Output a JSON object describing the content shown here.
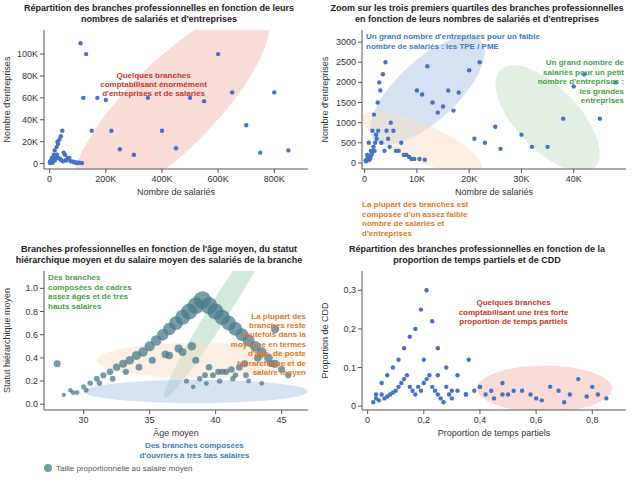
{
  "chart_data": [
    {
      "type": "scatter",
      "title": "Répartition des branches professionnelles en fonction de leurs\nnombres de salariés et d'entreprises",
      "x_label": "Nombre de salariés",
      "y_label": "Nombre d'entreprises",
      "grid": false,
      "series": [
        {
          "color": "#4472c4",
          "x": [
            1000,
            2000,
            3000,
            4000,
            5000,
            6000,
            7000,
            8000,
            9000,
            10000,
            11000,
            12000,
            13000,
            15000,
            16000,
            18000,
            19000,
            20000,
            22000,
            23000,
            25000,
            26000,
            28000,
            30000,
            32000,
            35000,
            38000,
            40000,
            42000,
            45000,
            48000,
            50000,
            55000,
            58000,
            60000,
            65000,
            70000,
            75000,
            80000,
            85000,
            90000,
            95000,
            100000,
            105000,
            110000,
            115000,
            120000,
            130000,
            150000,
            170000,
            200000,
            220000,
            250000,
            300000,
            350000,
            400000,
            450000,
            500000,
            550000,
            600000,
            650000,
            700000,
            750000,
            800000,
            850000
          ],
          "values": [
            1000,
            2000,
            500,
            1500,
            2000,
            3000,
            2000,
            5000,
            800,
            1000,
            1200,
            3000,
            2000,
            8000,
            4000,
            12000,
            3000,
            5000,
            7000,
            6000,
            15000,
            8000,
            20000,
            18000,
            5000,
            22000,
            4000,
            25000,
            3000,
            30000,
            2000,
            10000,
            8000,
            3000,
            3000,
            5000,
            5000,
            2000,
            2000,
            1500,
            1000,
            1000,
            500,
            800,
            110000,
            400,
            60000,
            100000,
            30000,
            60000,
            58000,
            30000,
            13000,
            8000,
            60000,
            30000,
            14000,
            60000,
            57000,
            100000,
            65000,
            35000,
            10000,
            65000,
            12000
          ]
        }
      ],
      "highlights": [
        {
          "center": [
            430000,
            52000
          ],
          "width": 720000,
          "height": 105000,
          "angle": 12,
          "color": "#f4b8b0"
        }
      ],
      "annotations": [
        {
          "text": "Quelques branches\ncomptabilisant énormément\nd'entreprises et de salariés",
          "color": "#c0392b"
        }
      ],
      "xlim": [
        -20000,
        920000
      ],
      "ylim": [
        -5000,
        122000
      ],
      "xticks": [
        0,
        {
          "value": 200000,
          "label": "200K"
        },
        {
          "value": 400000,
          "label": "400K"
        },
        {
          "value": 600000,
          "label": "600K"
        },
        {
          "value": 800000,
          "label": "800K"
        }
      ],
      "yticks": [
        0,
        {
          "value": 20000,
          "label": "20K"
        },
        {
          "value": 40000,
          "label": "40K"
        },
        {
          "value": 60000,
          "label": "60K"
        },
        {
          "value": 80000,
          "label": "80K"
        },
        {
          "value": 100000,
          "label": "100K"
        }
      ]
    },
    {
      "type": "scatter",
      "title": "Zoom sur les trois premiers quartiles des branches professionnelles\nen fonction de leurs nombres de salariés et d'entreprises",
      "x_label": "Nombre de salariés",
      "y_label": "Nombre d'entreprises",
      "grid": false,
      "series": [
        {
          "color": "#4472c4",
          "x": [
            200,
            300,
            400,
            500,
            600,
            700,
            800,
            900,
            1000,
            1100,
            1200,
            1300,
            1400,
            1500,
            1600,
            1700,
            1800,
            1900,
            2000,
            2200,
            2300,
            2500,
            2600,
            2800,
            3000,
            3200,
            3500,
            3800,
            4000,
            4200,
            4500,
            4800,
            5000,
            5500,
            6000,
            6500,
            7000,
            7500,
            8000,
            8500,
            9000,
            9500,
            10000,
            10500,
            11000,
            11500,
            12000,
            13000,
            14000,
            15000,
            16000,
            17000,
            18000,
            20000,
            21000,
            22000,
            23000,
            25000,
            26000,
            30000,
            32000,
            35000,
            38000,
            40000,
            42000,
            45000,
            48000
          ],
          "values": [
            60,
            40,
            80,
            200,
            100,
            150,
            500,
            80,
            100,
            120,
            300,
            200,
            250,
            800,
            300,
            400,
            1200,
            300,
            500,
            700,
            600,
            1500,
            800,
            2000,
            1800,
            500,
            2200,
            300,
            2500,
            800,
            600,
            400,
            1000,
            800,
            300,
            300,
            500,
            200,
            200,
            150,
            100,
            100,
            1800,
            100,
            1700,
            80,
            2400,
            1500,
            1250,
            1400,
            1800,
            1300,
            1750,
            2300,
            600,
            2500,
            500,
            900,
            350,
            700,
            400,
            400,
            1100,
            1900,
            2200,
            1100,
            2000
          ]
        }
      ],
      "highlights": [
        {
          "center": [
            12000,
            1800
          ],
          "width": 22000,
          "height": 1900,
          "angle": 5,
          "color": "#aec6e8"
        },
        {
          "center": [
            11000,
            500
          ],
          "width": 23000,
          "height": 1000,
          "angle": -3,
          "color": "#f5dfc5"
        },
        {
          "center": [
            35000,
            1100
          ],
          "width": 20000,
          "height": 2000,
          "angle": -5,
          "color": "#c5e0c5"
        }
      ],
      "annotations": [
        {
          "text": "Un grand nombre d'entreprises pour un faible\nnombre de salariés : les TPE / PME",
          "color": "#3a7bbf"
        },
        {
          "text": "Un grand nombre de\nsalariés pour un petit\nnombre d'entreprises :\nles grandes\nentreprises",
          "color": "#4a9e4a"
        },
        {
          "text": "La plupart des branches est\ncomposée d'un assez faible\nnombre de salariés et\nd'entreprises",
          "color": "#e07820"
        }
      ],
      "xlim": [
        -500,
        50000
      ],
      "ylim": [
        -150,
        3300
      ],
      "xticks": [
        0,
        {
          "value": 10000,
          "label": "10K"
        },
        {
          "value": 20000,
          "label": "20K"
        },
        {
          "value": 30000,
          "label": "30K"
        },
        {
          "value": 40000,
          "label": "40K"
        }
      ],
      "yticks": [
        0,
        500,
        1000,
        1500,
        2000,
        2500,
        3000
      ]
    },
    {
      "type": "bubble",
      "title": "Branches professionnelles en fonction de l'âge moyen, du statut\nhiérarchique moyen et du salaire moyen des salariés de la branche",
      "x_label": "Âge moyen",
      "y_label": "Statut hiérarchique moyen",
      "grid": false,
      "legend": "bottom",
      "series": [
        {
          "name": "Taille proportionnelle au salaire moyen",
          "color": "#4a7a8a",
          "x": [
            28.0,
            28.5,
            29.0,
            29.5,
            30.0,
            30.5,
            31.0,
            31.5,
            32.0,
            32.5,
            33.0,
            33.5,
            34.0,
            34.5,
            35.0,
            35.5,
            36.0,
            36.5,
            37.0,
            37.5,
            38.0,
            38.5,
            39.0,
            39.5,
            40.0,
            40.5,
            41.0,
            41.5,
            42.0,
            42.5,
            43.0,
            43.5,
            44.0,
            44.5,
            45.0,
            45.5,
            29.2,
            30.2,
            31.2,
            32.2,
            33.2,
            34.2,
            35.2,
            36.2,
            37.2,
            38.2,
            39.2,
            40.2,
            41.2,
            42.2,
            43.2,
            44.2,
            37.8,
            38.8,
            39.8,
            40.8,
            41.8,
            38.3,
            39.3,
            40.3,
            41.3,
            42.3,
            36.5,
            37.5,
            38.5,
            39.5,
            40.5,
            41.5,
            42.5,
            43.5,
            44.5
          ],
          "values": [
            0.35,
            0.08,
            0.12,
            0.1,
            0.15,
            0.18,
            0.22,
            0.25,
            0.28,
            0.32,
            0.35,
            0.38,
            0.42,
            0.45,
            0.5,
            0.55,
            0.6,
            0.65,
            0.7,
            0.75,
            0.8,
            0.85,
            0.9,
            0.85,
            0.8,
            0.75,
            0.7,
            0.65,
            0.6,
            0.55,
            0.5,
            0.45,
            0.4,
            0.35,
            0.3,
            0.25,
            0.1,
            0.12,
            0.18,
            0.22,
            0.28,
            0.32,
            0.38,
            0.43,
            0.48,
            0.5,
            0.25,
            0.28,
            0.3,
            0.35,
            0.4,
            0.35,
            0.2,
            0.22,
            0.25,
            0.28,
            0.32,
            0.15,
            0.18,
            0.2,
            0.22,
            0.25,
            0.42,
            0.45,
            0.38,
            0.32,
            0.28,
            0.25,
            0.2,
            0.18,
            0.65
          ],
          "sizes": [
            40,
            15,
            18,
            20,
            22,
            25,
            28,
            32,
            38,
            45,
            52,
            60,
            68,
            75,
            85,
            95,
            110,
            130,
            155,
            185,
            210,
            230,
            255,
            235,
            215,
            195,
            175,
            155,
            135,
            115,
            95,
            75,
            62,
            52,
            42,
            32,
            18,
            20,
            25,
            28,
            32,
            38,
            42,
            48,
            55,
            60,
            28,
            32,
            35,
            40,
            45,
            38,
            22,
            25,
            28,
            32,
            38,
            18,
            20,
            22,
            25,
            28,
            45,
            50,
            42,
            35,
            30,
            25,
            20,
            18,
            58
          ]
        }
      ],
      "highlights": [
        {
          "center": [
            40.5,
            0.85
          ],
          "width": 9,
          "height": 0.32,
          "angle": 10,
          "color": "#a8d4b8"
        },
        {
          "center": [
            38.5,
            0.38
          ],
          "width": 15,
          "height": 0.3,
          "angle": 0,
          "color": "#f5dfc5"
        },
        {
          "center": [
            38.5,
            0.11
          ],
          "width": 17,
          "height": 0.2,
          "angle": 0,
          "color": "#aec6e8"
        }
      ],
      "annotations": [
        {
          "text": "Des branches\ncomposées de cadres\nassez âgés et de très\nhauts salaires",
          "color": "#4a9e4a"
        },
        {
          "text": "La plupart des\nbranches reste\ntoutefois dans la\nmoyenne en termes\nd'âge, de poste\nhiérarchique et de\nsalaire moyen",
          "color": "#e07820"
        },
        {
          "text": "Des branches composées\nd'ouvriers à très bas salaires",
          "color": "#3a7bbf"
        }
      ],
      "xlim": [
        27,
        47
      ],
      "ylim": [
        -0.05,
        1.15
      ],
      "xticks": [
        30,
        35,
        40,
        45
      ],
      "yticks": [
        {
          "value": 0.0,
          "label": "0.0"
        },
        0.2,
        0.4,
        0.6,
        0.8,
        {
          "value": 1.0,
          "label": "1.0"
        }
      ]
    },
    {
      "type": "scatter",
      "title": "Répartition des branches professionnelles en fonction de la\nproportion de temps partiels et de CDD",
      "x_label": "Proportion de temps partiels",
      "y_label": "Proportion de CDD",
      "grid": false,
      "series": [
        {
          "color": "#4472c4",
          "x": [
            0.02,
            0.03,
            0.04,
            0.05,
            0.06,
            0.07,
            0.08,
            0.09,
            0.1,
            0.11,
            0.12,
            0.13,
            0.14,
            0.15,
            0.16,
            0.17,
            0.18,
            0.19,
            0.2,
            0.21,
            0.22,
            0.23,
            0.24,
            0.25,
            0.26,
            0.27,
            0.28,
            0.29,
            0.3,
            0.32,
            0.35,
            0.38,
            0.4,
            0.42,
            0.45,
            0.48,
            0.5,
            0.52,
            0.55,
            0.58,
            0.6,
            0.62,
            0.65,
            0.68,
            0.7,
            0.72,
            0.75,
            0.78,
            0.8,
            0.82,
            0.85,
            0.03,
            0.05,
            0.07,
            0.09,
            0.11,
            0.13,
            0.15,
            0.17,
            0.19,
            0.21,
            0.23,
            0.25,
            0.28,
            0.32,
            0.36,
            0.4,
            0.44,
            0.48,
            0.2,
            0.25,
            0.3,
            0.35
          ],
          "values": [
            0.01,
            0.02,
            0.015,
            0.03,
            0.02,
            0.025,
            0.03,
            0.035,
            0.04,
            0.05,
            0.06,
            0.07,
            0.08,
            0.05,
            0.04,
            0.03,
            0.05,
            0.04,
            0.06,
            0.07,
            0.08,
            0.05,
            0.04,
            0.03,
            0.02,
            0.01,
            0.05,
            0.03,
            0.02,
            0.04,
            0.03,
            0.04,
            0.05,
            0.03,
            0.02,
            0.03,
            0.03,
            0.04,
            0.04,
            0.03,
            0.02,
            0.015,
            0.05,
            0.04,
            0.01,
            0.03,
            0.07,
            0.025,
            0.05,
            0.03,
            0.02,
            0.03,
            0.06,
            0.08,
            0.1,
            0.12,
            0.15,
            0.18,
            0.2,
            0.25,
            0.3,
            0.22,
            0.15,
            0.1,
            0.08,
            0.12,
            0.05,
            0.04,
            0.06,
            0.12,
            0.08,
            0.04,
            0.03
          ]
        }
      ],
      "highlights": [
        {
          "center": [
            0.63,
            0.045
          ],
          "width": 0.48,
          "height": 0.12,
          "angle": 0,
          "color": "#f4b8b0"
        }
      ],
      "annotations": [
        {
          "text": "Quelques branches\ncomptabilisant une très forte\nproportion de temps partiels",
          "color": "#c0392b"
        }
      ],
      "xlim": [
        -0.02,
        0.92
      ],
      "ylim": [
        -0.01,
        0.35
      ],
      "xticks": [
        0,
        {
          "value": 0.2,
          "label": "0,2"
        },
        {
          "value": 0.4,
          "label": "0,4"
        },
        {
          "value": 0.6,
          "label": "0,6"
        },
        {
          "value": 0.8,
          "label": "0,8"
        }
      ],
      "yticks": [
        0,
        {
          "value": 0.1,
          "label": "0,1"
        },
        {
          "value": 0.2,
          "label": "0,2"
        },
        {
          "value": 0.3,
          "label": "0,3"
        }
      ]
    }
  ]
}
